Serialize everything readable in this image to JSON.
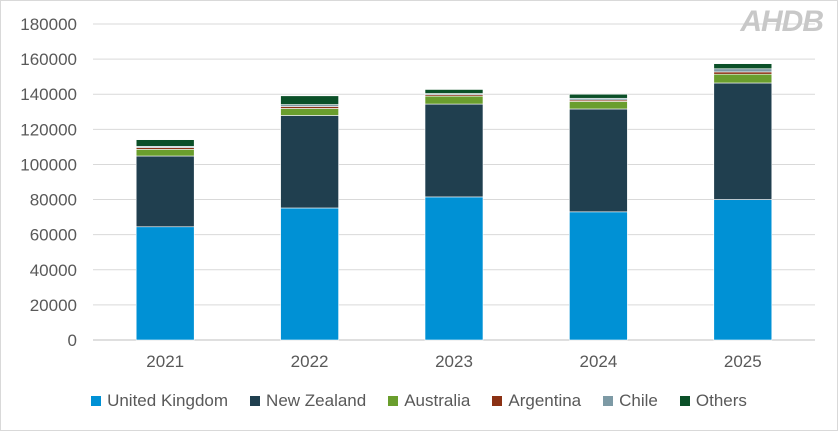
{
  "logo_text": "AHDB",
  "chart_data": {
    "type": "bar",
    "stacked": true,
    "categories": [
      "2021",
      "2022",
      "2023",
      "2024",
      "2025"
    ],
    "series": [
      {
        "name": "United Kingdom",
        "color": "#0091d5",
        "values": [
          64500,
          75200,
          81500,
          73000,
          80000
        ]
      },
      {
        "name": "New Zealand",
        "color": "#203f4f",
        "values": [
          40300,
          52700,
          52900,
          58600,
          66400
        ]
      },
      {
        "name": "Australia",
        "color": "#6a9e2d",
        "values": [
          3800,
          4000,
          4500,
          4300,
          5000
        ]
      },
      {
        "name": "Argentina",
        "color": "#8b3114",
        "values": [
          1000,
          1100,
          800,
          800,
          1300
        ]
      },
      {
        "name": "Chile",
        "color": "#7d9aa5",
        "values": [
          700,
          1100,
          700,
          1000,
          1800
        ]
      },
      {
        "name": "Others",
        "color": "#0b5028",
        "values": [
          3800,
          5000,
          2300,
          2300,
          2900
        ]
      }
    ],
    "ylim": [
      0,
      180000
    ],
    "yticks": [
      "0",
      "20000",
      "40000",
      "60000",
      "80000",
      "100000",
      "120000",
      "140000",
      "160000",
      "180000"
    ],
    "grid": true,
    "legend": "bottom",
    "title": "",
    "xlabel": "",
    "ylabel": ""
  }
}
